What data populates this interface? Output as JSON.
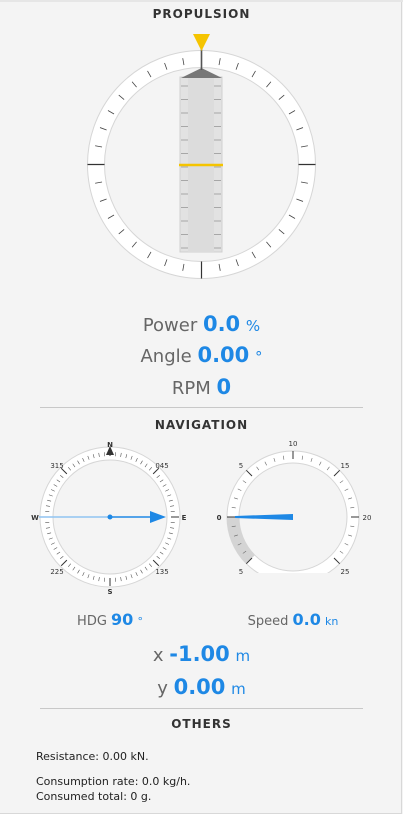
{
  "propulsion": {
    "title": "PROPULSION",
    "power_label": "Power",
    "power_value": "0.0",
    "power_unit": "%",
    "angle_label": "Angle",
    "angle_value": "0.00",
    "angle_unit": "°",
    "rpm_label": "RPM",
    "rpm_value": "0"
  },
  "navigation": {
    "title": "NAVIGATION",
    "compass": {
      "heading_deg": 90,
      "labels": {
        "n": "N",
        "e": "E",
        "s": "S",
        "w": "W",
        "ne": "045",
        "se": "135",
        "sw": "225",
        "nw": "315"
      }
    },
    "speed_gauge": {
      "value_kn": 0.0,
      "labels": {
        "t0": "0",
        "t5a": "5",
        "t10": "10",
        "t15": "15",
        "t20": "20",
        "t25": "25",
        "t5b": "5"
      }
    },
    "hdg_label": "HDG",
    "hdg_value": "90",
    "hdg_unit": "°",
    "speed_label": "Speed",
    "speed_value": "0.0",
    "speed_unit": "kn",
    "x_label": "x",
    "x_value": "-1.00",
    "x_unit": "m",
    "y_label": "y",
    "y_value": "0.00",
    "y_unit": "m"
  },
  "others": {
    "title": "OTHERS",
    "resistance": "Resistance: 0.00 kN.",
    "consumption_rate": "Consumption rate: 0.0 kg/h.",
    "consumed_total": "Consumed total: 0 g."
  },
  "colors": {
    "accent": "#1e88e5",
    "indicator": "#f5c400"
  }
}
